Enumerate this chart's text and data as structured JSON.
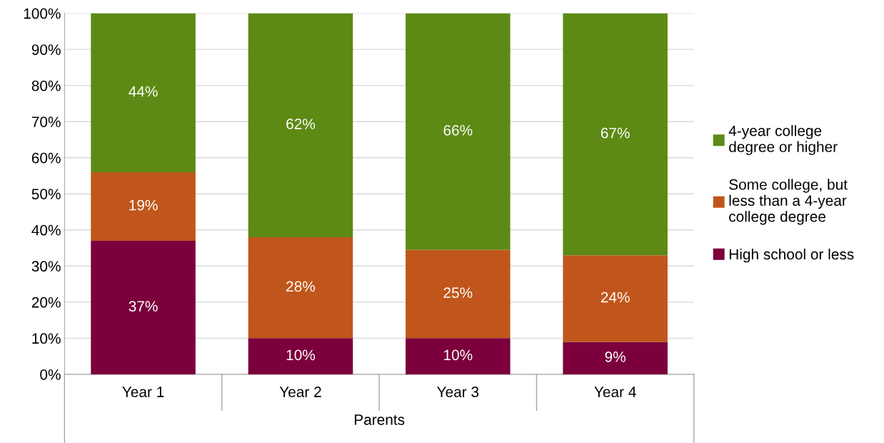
{
  "chart_data": {
    "type": "bar",
    "stacked": true,
    "xlabel": "Parents",
    "categories": [
      "Year 1",
      "Year 2",
      "Year 3",
      "Year 4"
    ],
    "series": [
      {
        "name": "High school or less",
        "color": "#7b003c",
        "values": [
          37,
          10,
          10,
          9
        ],
        "value_labels": [
          "37%",
          "10%",
          "10%",
          "9%"
        ]
      },
      {
        "name": "Some college, but less than a 4-year college degree",
        "color": "#c0561b",
        "values": [
          19,
          28,
          24.5,
          24
        ],
        "value_labels": [
          "19%",
          "28%",
          "25%",
          "24%"
        ]
      },
      {
        "name": "4-year college degree or higher",
        "color": "#5d8a15",
        "values": [
          44,
          62,
          65.5,
          67
        ],
        "value_labels": [
          "44%",
          "62%",
          "66%",
          "67%"
        ]
      }
    ],
    "ylim": [
      0,
      100
    ],
    "yticks": [
      {
        "value": 0,
        "label": "0%"
      },
      {
        "value": 10,
        "label": "10%"
      },
      {
        "value": 20,
        "label": "20%"
      },
      {
        "value": 30,
        "label": "30%"
      },
      {
        "value": 40,
        "label": "40%"
      },
      {
        "value": 50,
        "label": "50%"
      },
      {
        "value": 60,
        "label": "60%"
      },
      {
        "value": 70,
        "label": "70%"
      },
      {
        "value": 80,
        "label": "80%"
      },
      {
        "value": 90,
        "label": "90%"
      },
      {
        "value": 100,
        "label": "100%"
      }
    ],
    "grid": "y",
    "legend": "right"
  }
}
